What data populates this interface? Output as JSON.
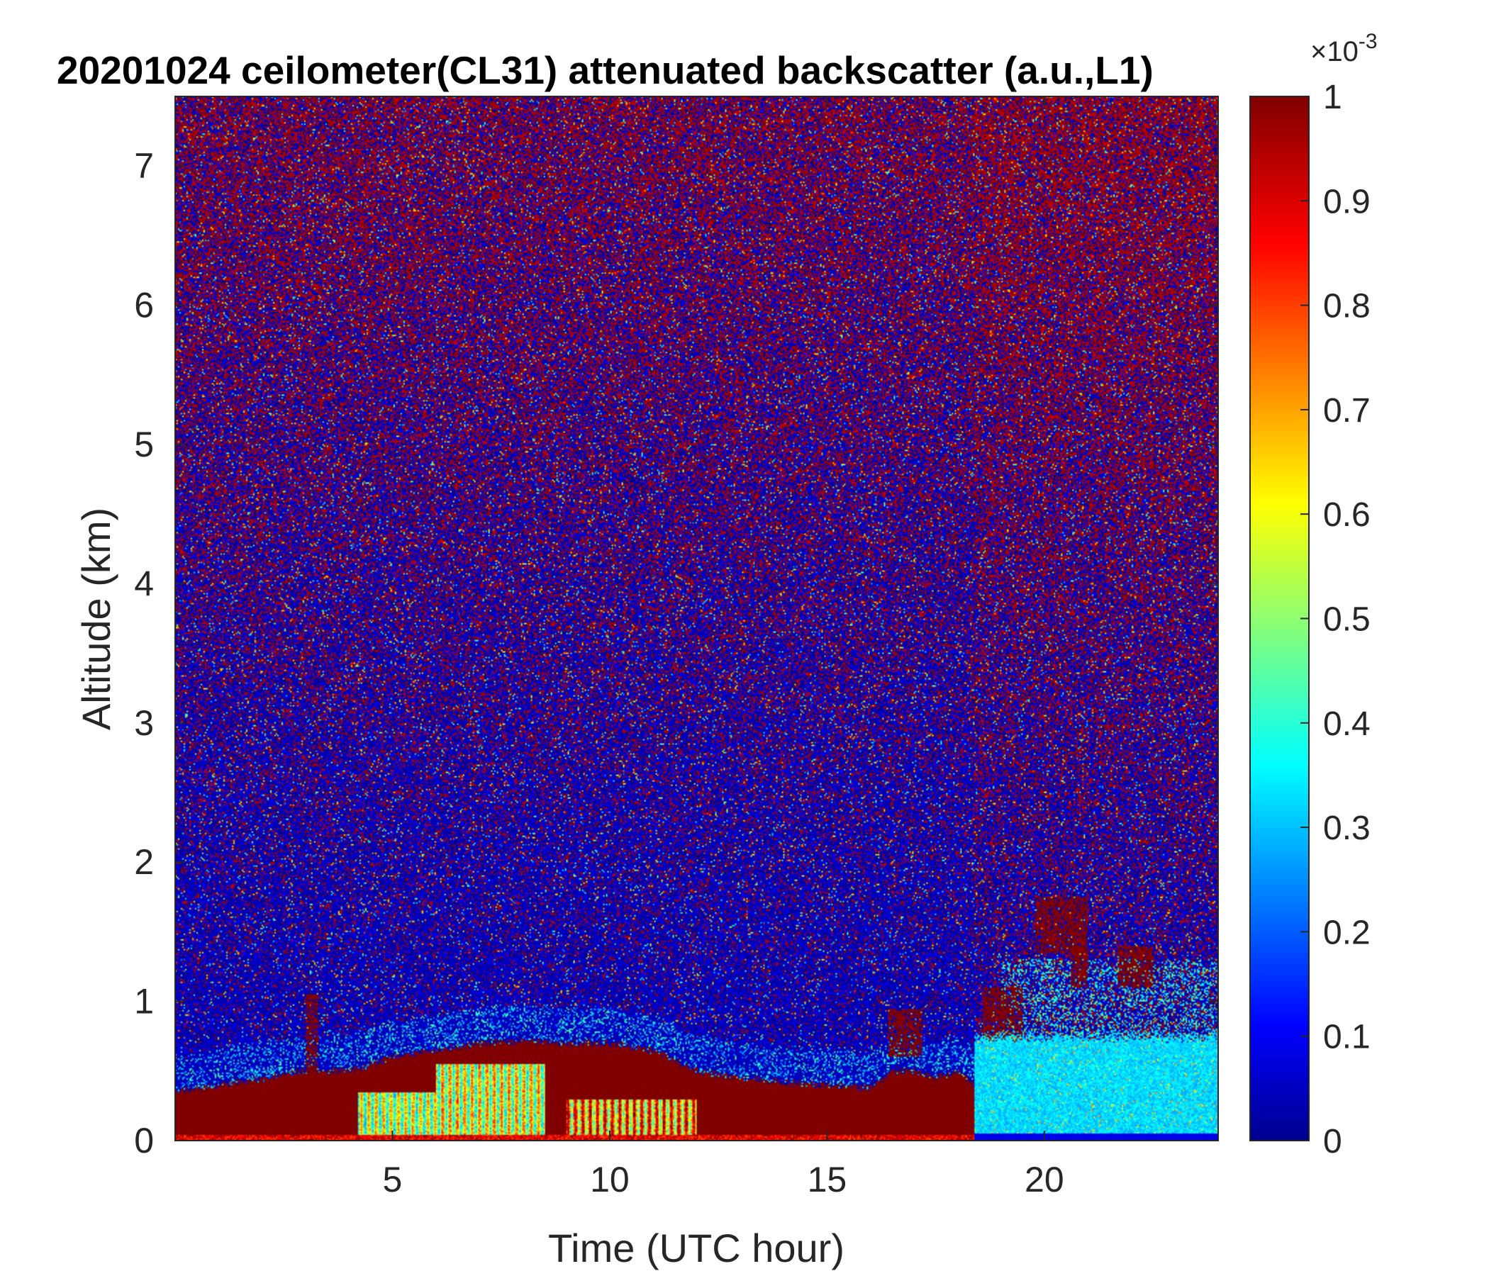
{
  "chart_data": {
    "type": "heatmap",
    "title": "20201024 ceilometer(CL31) attenuated backscatter (a.u.,L1)",
    "xlabel": "Time (UTC hour)",
    "ylabel": "Altitude (km)",
    "xlim": [
      0,
      24
    ],
    "ylim": [
      0,
      7.5
    ],
    "xticks": [
      5,
      10,
      15,
      20
    ],
    "xtick_labels": [
      "5",
      "10",
      "15",
      "20"
    ],
    "yticks": [
      0,
      1,
      2,
      3,
      4,
      5,
      6,
      7
    ],
    "ytick_labels": [
      "0",
      "1",
      "2",
      "3",
      "4",
      "5",
      "6",
      "7"
    ],
    "colorbar": {
      "colormap": "jet",
      "range": [
        0,
        1
      ],
      "ticks": [
        0,
        0.1,
        0.2,
        0.3,
        0.4,
        0.5,
        0.6,
        0.7,
        0.8,
        0.9,
        1
      ],
      "tick_labels": [
        "0",
        "0.1",
        "0.2",
        "0.3",
        "0.4",
        "0.5",
        "0.6",
        "0.7",
        "0.8",
        "0.9",
        "1"
      ],
      "exponent_base": "×10",
      "exponent_power": "-3"
    },
    "boundary_layer_top_km": [
      [
        0,
        0.35
      ],
      [
        1,
        0.4
      ],
      [
        2,
        0.45
      ],
      [
        3,
        0.5
      ],
      [
        4,
        0.5
      ],
      [
        5,
        0.6
      ],
      [
        6,
        0.65
      ],
      [
        7,
        0.7
      ],
      [
        8,
        0.72
      ],
      [
        9,
        0.7
      ],
      [
        10,
        0.7
      ],
      [
        11,
        0.65
      ],
      [
        12,
        0.5
      ],
      [
        13,
        0.45
      ],
      [
        14,
        0.42
      ],
      [
        15,
        0.4
      ],
      [
        16,
        0.38
      ],
      [
        16.5,
        0.5
      ],
      [
        17,
        0.5
      ],
      [
        17.5,
        0.45
      ],
      [
        18,
        0.5
      ],
      [
        18.4,
        0.4
      ]
    ],
    "high_backscatter_regions": [
      {
        "x": [
          4.2,
          6.0
        ],
        "y": [
          0,
          0.35
        ],
        "level": 0.6
      },
      {
        "x": [
          6.0,
          8.5
        ],
        "y": [
          0,
          0.55
        ],
        "level": 0.65
      },
      {
        "x": [
          9.0,
          12.0
        ],
        "y": [
          0,
          0.3
        ],
        "level": 0.85
      },
      {
        "x": [
          18.4,
          24.0
        ],
        "y": [
          0,
          0.75
        ],
        "level": 0.33
      }
    ],
    "cloud_patches": [
      {
        "x": [
          19.8,
          21.0
        ],
        "y": [
          1.35,
          1.75
        ]
      },
      {
        "x": [
          20.6,
          21.0
        ],
        "y": [
          1.1,
          1.4
        ]
      },
      {
        "x": [
          21.7,
          22.5
        ],
        "y": [
          1.1,
          1.4
        ]
      },
      {
        "x": [
          16.4,
          17.2
        ],
        "y": [
          0.6,
          0.95
        ]
      },
      {
        "x": [
          3.0,
          3.3
        ],
        "y": [
          0.45,
          1.05
        ]
      },
      {
        "x": [
          18.6,
          19.5
        ],
        "y": [
          0.7,
          1.1
        ]
      }
    ]
  }
}
